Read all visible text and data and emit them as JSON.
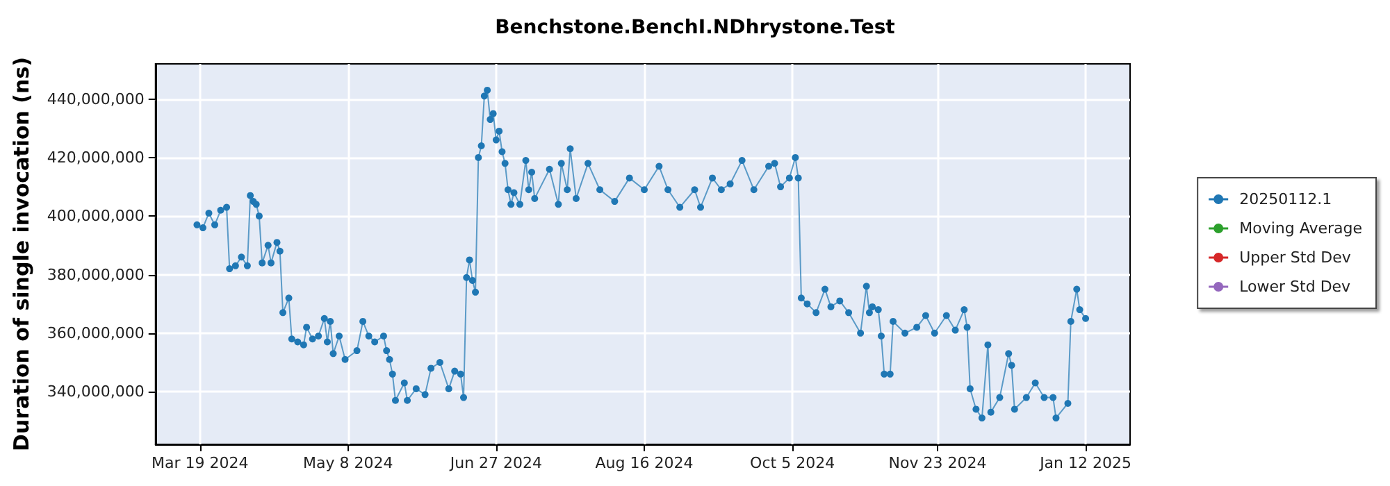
{
  "chart_data": {
    "type": "line",
    "title": "Benchstone.BenchI.NDhrystone.Test",
    "ylabel": "Duration of single invocation (ns)",
    "x": [
      "2024-03-18",
      "2024-03-20",
      "2024-03-22",
      "2024-03-24",
      "2024-03-26",
      "2024-03-28",
      "2024-03-29",
      "2024-03-31",
      "2024-04-02",
      "2024-04-04",
      "2024-04-05",
      "2024-04-06",
      "2024-04-07",
      "2024-04-08",
      "2024-04-09",
      "2024-04-11",
      "2024-04-12",
      "2024-04-14",
      "2024-04-15",
      "2024-04-16",
      "2024-04-18",
      "2024-04-19",
      "2024-04-21",
      "2024-04-23",
      "2024-04-24",
      "2024-04-26",
      "2024-04-28",
      "2024-04-30",
      "2024-05-01",
      "2024-05-02",
      "2024-05-03",
      "2024-05-05",
      "2024-05-07",
      "2024-05-11",
      "2024-05-13",
      "2024-05-15",
      "2024-05-17",
      "2024-05-20",
      "2024-05-21",
      "2024-05-22",
      "2024-05-23",
      "2024-05-24",
      "2024-05-27",
      "2024-05-28",
      "2024-05-31",
      "2024-06-03",
      "2024-06-05",
      "2024-06-08",
      "2024-06-11",
      "2024-06-13",
      "2024-06-15",
      "2024-06-16",
      "2024-06-17",
      "2024-06-18",
      "2024-06-19",
      "2024-06-20",
      "2024-06-21",
      "2024-06-22",
      "2024-06-23",
      "2024-06-24",
      "2024-06-25",
      "2024-06-26",
      "2024-06-27",
      "2024-06-28",
      "2024-06-29",
      "2024-06-30",
      "2024-07-01",
      "2024-07-02",
      "2024-07-03",
      "2024-07-05",
      "2024-07-07",
      "2024-07-08",
      "2024-07-09",
      "2024-07-10",
      "2024-07-15",
      "2024-07-18",
      "2024-07-19",
      "2024-07-21",
      "2024-07-22",
      "2024-07-24",
      "2024-07-28",
      "2024-08-01",
      "2024-08-06",
      "2024-08-11",
      "2024-08-16",
      "2024-08-21",
      "2024-08-24",
      "2024-08-28",
      "2024-09-02",
      "2024-09-04",
      "2024-09-08",
      "2024-09-11",
      "2024-09-14",
      "2024-09-18",
      "2024-09-22",
      "2024-09-27",
      "2024-09-29",
      "2024-10-01",
      "2024-10-04",
      "2024-10-06",
      "2024-10-07",
      "2024-10-08",
      "2024-10-10",
      "2024-10-13",
      "2024-10-16",
      "2024-10-18",
      "2024-10-21",
      "2024-10-24",
      "2024-10-28",
      "2024-10-30",
      "2024-10-31",
      "2024-11-01",
      "2024-11-03",
      "2024-11-04",
      "2024-11-05",
      "2024-11-07",
      "2024-11-08",
      "2024-11-12",
      "2024-11-16",
      "2024-11-19",
      "2024-11-22",
      "2024-11-26",
      "2024-11-29",
      "2024-12-02",
      "2024-12-03",
      "2024-12-04",
      "2024-12-06",
      "2024-12-08",
      "2024-12-10",
      "2024-12-11",
      "2024-12-14",
      "2024-12-17",
      "2024-12-18",
      "2024-12-19",
      "2024-12-23",
      "2024-12-26",
      "2024-12-29",
      "2025-01-01",
      "2025-01-02",
      "2025-01-06",
      "2025-01-07",
      "2025-01-09",
      "2025-01-10",
      "2025-01-12"
    ],
    "series": [
      {
        "name": "20250112.1",
        "color": "#1f77b4",
        "values": [
          397000000,
          396000000,
          401000000,
          397000000,
          402000000,
          403000000,
          382000000,
          383000000,
          386000000,
          383000000,
          407000000,
          405000000,
          404000000,
          400000000,
          384000000,
          390000000,
          384000000,
          391000000,
          388000000,
          367000000,
          372000000,
          358000000,
          357000000,
          356000000,
          362000000,
          358000000,
          359000000,
          365000000,
          357000000,
          364000000,
          353000000,
          359000000,
          351000000,
          354000000,
          364000000,
          359000000,
          357000000,
          359000000,
          354000000,
          351000000,
          346000000,
          337000000,
          343000000,
          337000000,
          341000000,
          339000000,
          348000000,
          350000000,
          341000000,
          347000000,
          346000000,
          338000000,
          379000000,
          385000000,
          378000000,
          374000000,
          420000000,
          424000000,
          441000000,
          443000000,
          433000000,
          435000000,
          426000000,
          429000000,
          422000000,
          418000000,
          409000000,
          404000000,
          408000000,
          404000000,
          419000000,
          409000000,
          415000000,
          406000000,
          416000000,
          404000000,
          418000000,
          409000000,
          423000000,
          406000000,
          418000000,
          409000000,
          405000000,
          413000000,
          409000000,
          417000000,
          409000000,
          403000000,
          409000000,
          403000000,
          413000000,
          409000000,
          411000000,
          419000000,
          409000000,
          417000000,
          418000000,
          410000000,
          413000000,
          420000000,
          413000000,
          372000000,
          370000000,
          367000000,
          375000000,
          369000000,
          371000000,
          367000000,
          360000000,
          376000000,
          367000000,
          369000000,
          368000000,
          359000000,
          346000000,
          346000000,
          364000000,
          360000000,
          362000000,
          366000000,
          360000000,
          366000000,
          361000000,
          368000000,
          362000000,
          341000000,
          334000000,
          331000000,
          356000000,
          333000000,
          338000000,
          353000000,
          349000000,
          334000000,
          338000000,
          343000000,
          338000000,
          338000000,
          331000000,
          336000000,
          364000000,
          375000000,
          368000000,
          365000000
        ]
      },
      {
        "name": "Moving Average",
        "color": "#2ca02c",
        "values": [
          null,
          null,
          null,
          null,
          null,
          null,
          null,
          null,
          null,
          null,
          null,
          null,
          null,
          null,
          null,
          null,
          null,
          null,
          null,
          null,
          null,
          null,
          null,
          null,
          null,
          null,
          null,
          null,
          null,
          null,
          null,
          null,
          null,
          null,
          null,
          null,
          null,
          null,
          null,
          null,
          null,
          null,
          null,
          null,
          null,
          null,
          null,
          null,
          null,
          null,
          null,
          null,
          null,
          null,
          null,
          null,
          null,
          null,
          null,
          null,
          null,
          null,
          null,
          null,
          null,
          null,
          null,
          null,
          null,
          null,
          null,
          null,
          null,
          null,
          null,
          null,
          null,
          null,
          null,
          null,
          null,
          null,
          null,
          null,
          null,
          null,
          null,
          null,
          null,
          null,
          null,
          null,
          null,
          null,
          null,
          null,
          null,
          null,
          null,
          null,
          null,
          null,
          null,
          null,
          null,
          null,
          null,
          null,
          null,
          null,
          null,
          null,
          null,
          null,
          null,
          null,
          null,
          null,
          null,
          null,
          null,
          null,
          null,
          null,
          null,
          null,
          null,
          null,
          null,
          null,
          null,
          null,
          null,
          null,
          null,
          null,
          null,
          null,
          null,
          null,
          null,
          null,
          null,
          null
        ]
      },
      {
        "name": "Upper Std Dev",
        "color": "#d62728",
        "values": [
          null,
          null,
          null,
          null,
          null,
          null,
          null,
          null,
          null,
          null,
          null,
          null,
          null,
          null,
          null,
          null,
          null,
          null,
          null,
          null,
          null,
          null,
          null,
          null,
          null,
          null,
          null,
          null,
          null,
          null,
          null,
          null,
          null,
          null,
          null,
          null,
          null,
          null,
          null,
          null,
          null,
          null,
          null,
          null,
          null,
          null,
          null,
          null,
          null,
          null,
          null,
          null,
          null,
          null,
          null,
          null,
          null,
          null,
          null,
          null,
          null,
          null,
          null,
          null,
          null,
          null,
          null,
          null,
          null,
          null,
          null,
          null,
          null,
          null,
          null,
          null,
          null,
          null,
          null,
          null,
          null,
          null,
          null,
          null,
          null,
          null,
          null,
          null,
          null,
          null,
          null,
          null,
          null,
          null,
          null,
          null,
          null,
          null,
          null,
          null,
          null,
          null,
          null,
          null,
          null,
          null,
          null,
          null,
          null,
          null,
          null,
          null,
          null,
          null,
          null,
          null,
          null,
          null,
          null,
          null,
          null,
          null,
          null,
          null,
          null,
          null,
          null,
          null,
          null,
          null,
          null,
          null,
          null,
          null,
          null,
          null,
          null,
          null,
          null,
          null,
          null,
          null,
          null,
          null
        ]
      },
      {
        "name": "Lower Std Dev",
        "color": "#9467bd",
        "values": [
          null,
          null,
          null,
          null,
          null,
          null,
          null,
          null,
          null,
          null,
          null,
          null,
          null,
          null,
          null,
          null,
          null,
          null,
          null,
          null,
          null,
          null,
          null,
          null,
          null,
          null,
          null,
          null,
          null,
          null,
          null,
          null,
          null,
          null,
          null,
          null,
          null,
          null,
          null,
          null,
          null,
          null,
          null,
          null,
          null,
          null,
          null,
          null,
          null,
          null,
          null,
          null,
          null,
          null,
          null,
          null,
          null,
          null,
          null,
          null,
          null,
          null,
          null,
          null,
          null,
          null,
          null,
          null,
          null,
          null,
          null,
          null,
          null,
          null,
          null,
          null,
          null,
          null,
          null,
          null,
          null,
          null,
          null,
          null,
          null,
          null,
          null,
          null,
          null,
          null,
          null,
          null,
          null,
          null,
          null,
          null,
          null,
          null,
          null,
          null,
          null,
          null,
          null,
          null,
          null,
          null,
          null,
          null,
          null,
          null,
          null,
          null,
          null,
          null,
          null,
          null,
          null,
          null,
          null,
          null,
          null,
          null,
          null,
          null,
          null,
          null,
          null,
          null,
          null,
          null,
          null,
          null,
          null,
          null,
          null,
          null,
          null,
          null,
          null,
          null,
          null,
          null,
          null,
          null
        ]
      }
    ],
    "xlim": [
      "2024-03-04",
      "2025-01-27"
    ],
    "xticks": [
      {
        "value": "2024-03-19",
        "label": "Mar 19 2024"
      },
      {
        "value": "2024-05-08",
        "label": "May 8 2024"
      },
      {
        "value": "2024-06-27",
        "label": "Jun 27 2024"
      },
      {
        "value": "2024-08-16",
        "label": "Aug 16 2024"
      },
      {
        "value": "2024-10-05",
        "label": "Oct 5 2024"
      },
      {
        "value": "2024-11-23",
        "label": "Nov 23 2024"
      },
      {
        "value": "2025-01-12",
        "label": "Jan 12 2025"
      }
    ],
    "ylim": [
      322000000,
      452000000
    ],
    "yticks": [
      {
        "value": 340000000,
        "label": "340,000,000"
      },
      {
        "value": 360000000,
        "label": "360,000,000"
      },
      {
        "value": 380000000,
        "label": "380,000,000"
      },
      {
        "value": 400000000,
        "label": "400,000,000"
      },
      {
        "value": 420000000,
        "label": "420,000,000"
      },
      {
        "value": 440000000,
        "label": "440,000,000"
      }
    ],
    "grid": true,
    "legend": "right",
    "marker": "circle",
    "line_style": "solid"
  }
}
